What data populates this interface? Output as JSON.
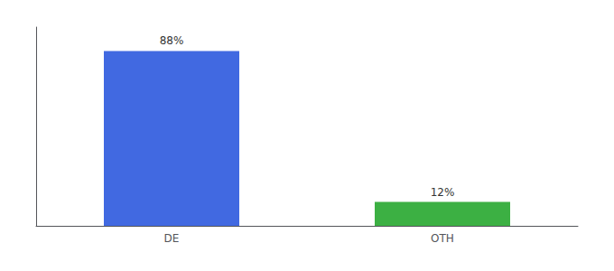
{
  "chart_data": {
    "type": "bar",
    "categories": [
      "DE",
      "OTH"
    ],
    "values": [
      88,
      12
    ],
    "value_labels": [
      "88%",
      "12%"
    ],
    "colors": [
      "#4169e1",
      "#3cb043"
    ],
    "ylim": [
      0,
      100
    ],
    "data_labels": true,
    "tick_labels": "x",
    "grid": false
  }
}
